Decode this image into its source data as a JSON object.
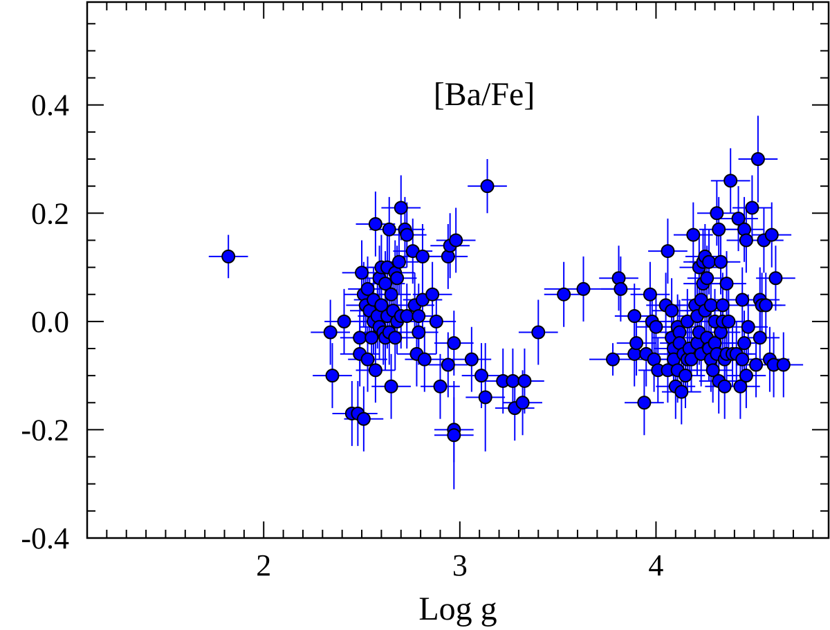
{
  "chart_data": {
    "type": "scatter",
    "title": "[Ba/Fe]",
    "xlabel": "Log g",
    "ylabel": "",
    "xlim": [
      1.1,
      4.88
    ],
    "ylim": [
      -0.4,
      0.59
    ],
    "x_ticks": [
      2,
      3,
      4
    ],
    "x_tick_labels": [
      "2",
      "3",
      "4"
    ],
    "y_ticks": [
      -0.4,
      -0.2,
      0.0,
      0.2,
      0.4
    ],
    "y_tick_labels": [
      "-0.4",
      "-0.2",
      "0.0",
      "0.2",
      "0.4"
    ],
    "grid": false,
    "legend": "none",
    "marker_color": "#0000ff",
    "errorbar_color": "#0000ff",
    "points": [
      {
        "x": 1.82,
        "y": 0.12,
        "xerr": 0.1,
        "yerr": 0.04
      },
      {
        "x": 2.34,
        "y": -0.02,
        "xerr": 0.1,
        "yerr": 0.06
      },
      {
        "x": 2.35,
        "y": -0.1,
        "xerr": 0.1,
        "yerr": 0.06
      },
      {
        "x": 2.41,
        "y": 0.0,
        "xerr": 0.1,
        "yerr": 0.06
      },
      {
        "x": 2.45,
        "y": -0.17,
        "xerr": 0.1,
        "yerr": 0.06
      },
      {
        "x": 2.48,
        "y": -0.17,
        "xerr": 0.1,
        "yerr": 0.06
      },
      {
        "x": 2.49,
        "y": -0.03,
        "xerr": 0.1,
        "yerr": 0.06
      },
      {
        "x": 2.49,
        "y": -0.06,
        "xerr": 0.1,
        "yerr": 0.06
      },
      {
        "x": 2.5,
        "y": 0.09,
        "xerr": 0.1,
        "yerr": 0.06
      },
      {
        "x": 2.51,
        "y": 0.05,
        "xerr": 0.1,
        "yerr": 0.06
      },
      {
        "x": 2.51,
        "y": -0.18,
        "xerr": 0.1,
        "yerr": 0.06
      },
      {
        "x": 2.52,
        "y": 0.03,
        "xerr": 0.1,
        "yerr": 0.06
      },
      {
        "x": 2.53,
        "y": 0.06,
        "xerr": 0.1,
        "yerr": 0.06
      },
      {
        "x": 2.53,
        "y": -0.07,
        "xerr": 0.1,
        "yerr": 0.06
      },
      {
        "x": 2.54,
        "y": 0.02,
        "xerr": 0.1,
        "yerr": 0.06
      },
      {
        "x": 2.55,
        "y": -0.03,
        "xerr": 0.1,
        "yerr": 0.06
      },
      {
        "x": 2.56,
        "y": 0.0,
        "xerr": 0.1,
        "yerr": 0.06
      },
      {
        "x": 2.56,
        "y": 0.04,
        "xerr": 0.1,
        "yerr": 0.06
      },
      {
        "x": 2.57,
        "y": 0.18,
        "xerr": 0.1,
        "yerr": 0.06
      },
      {
        "x": 2.57,
        "y": -0.09,
        "xerr": 0.1,
        "yerr": 0.06
      },
      {
        "x": 2.58,
        "y": 0.01,
        "xerr": 0.1,
        "yerr": 0.06
      },
      {
        "x": 2.59,
        "y": 0.08,
        "xerr": 0.1,
        "yerr": 0.06
      },
      {
        "x": 2.59,
        "y": -0.01,
        "xerr": 0.1,
        "yerr": 0.06
      },
      {
        "x": 2.6,
        "y": 0.1,
        "xerr": 0.1,
        "yerr": 0.06
      },
      {
        "x": 2.6,
        "y": 0.03,
        "xerr": 0.1,
        "yerr": 0.06
      },
      {
        "x": 2.61,
        "y": -0.02,
        "xerr": 0.1,
        "yerr": 0.06
      },
      {
        "x": 2.62,
        "y": 0.07,
        "xerr": 0.1,
        "yerr": 0.06
      },
      {
        "x": 2.62,
        "y": -0.03,
        "xerr": 0.1,
        "yerr": 0.06
      },
      {
        "x": 2.63,
        "y": 0.1,
        "xerr": 0.1,
        "yerr": 0.06
      },
      {
        "x": 2.63,
        "y": 0.01,
        "xerr": 0.1,
        "yerr": 0.06
      },
      {
        "x": 2.64,
        "y": 0.17,
        "xerr": 0.1,
        "yerr": 0.06
      },
      {
        "x": 2.64,
        "y": -0.02,
        "xerr": 0.1,
        "yerr": 0.06
      },
      {
        "x": 2.65,
        "y": 0.05,
        "xerr": 0.1,
        "yerr": 0.06
      },
      {
        "x": 2.65,
        "y": -0.12,
        "xerr": 0.1,
        "yerr": 0.06
      },
      {
        "x": 2.66,
        "y": 0.02,
        "xerr": 0.1,
        "yerr": 0.06
      },
      {
        "x": 2.67,
        "y": 0.09,
        "xerr": 0.1,
        "yerr": 0.06
      },
      {
        "x": 2.67,
        "y": -0.03,
        "xerr": 0.1,
        "yerr": 0.06
      },
      {
        "x": 2.68,
        "y": 0.0,
        "xerr": 0.1,
        "yerr": 0.06
      },
      {
        "x": 2.68,
        "y": 0.08,
        "xerr": 0.1,
        "yerr": 0.06
      },
      {
        "x": 2.69,
        "y": 0.11,
        "xerr": 0.1,
        "yerr": 0.06
      },
      {
        "x": 2.7,
        "y": 0.21,
        "xerr": 0.1,
        "yerr": 0.06
      },
      {
        "x": 2.7,
        "y": 0.01,
        "xerr": 0.1,
        "yerr": 0.06
      },
      {
        "x": 2.72,
        "y": 0.17,
        "xerr": 0.1,
        "yerr": 0.06
      },
      {
        "x": 2.73,
        "y": 0.16,
        "xerr": 0.1,
        "yerr": 0.06
      },
      {
        "x": 2.73,
        "y": 0.01,
        "xerr": 0.1,
        "yerr": 0.06
      },
      {
        "x": 2.76,
        "y": 0.13,
        "xerr": 0.1,
        "yerr": 0.06
      },
      {
        "x": 2.77,
        "y": 0.03,
        "xerr": 0.1,
        "yerr": 0.06
      },
      {
        "x": 2.78,
        "y": -0.06,
        "xerr": 0.1,
        "yerr": 0.06
      },
      {
        "x": 2.79,
        "y": 0.01,
        "xerr": 0.1,
        "yerr": 0.06
      },
      {
        "x": 2.79,
        "y": -0.02,
        "xerr": 0.1,
        "yerr": 0.06
      },
      {
        "x": 2.81,
        "y": 0.12,
        "xerr": 0.1,
        "yerr": 0.06
      },
      {
        "x": 2.81,
        "y": 0.04,
        "xerr": 0.1,
        "yerr": 0.06
      },
      {
        "x": 2.82,
        "y": -0.07,
        "xerr": 0.1,
        "yerr": 0.06
      },
      {
        "x": 2.86,
        "y": 0.05,
        "xerr": 0.1,
        "yerr": 0.06
      },
      {
        "x": 2.88,
        "y": 0.0,
        "xerr": 0.1,
        "yerr": 0.06
      },
      {
        "x": 2.9,
        "y": -0.12,
        "xerr": 0.1,
        "yerr": 0.06
      },
      {
        "x": 2.94,
        "y": 0.12,
        "xerr": 0.1,
        "yerr": 0.06
      },
      {
        "x": 2.94,
        "y": -0.08,
        "xerr": 0.1,
        "yerr": 0.06
      },
      {
        "x": 2.95,
        "y": 0.14,
        "xerr": 0.1,
        "yerr": 0.06
      },
      {
        "x": 2.97,
        "y": -0.04,
        "xerr": 0.1,
        "yerr": 0.06
      },
      {
        "x": 2.97,
        "y": -0.2,
        "xerr": 0.1,
        "yerr": 0.06
      },
      {
        "x": 2.97,
        "y": -0.21,
        "xerr": 0.1,
        "yerr": 0.1
      },
      {
        "x": 2.98,
        "y": 0.15,
        "xerr": 0.1,
        "yerr": 0.06
      },
      {
        "x": 3.06,
        "y": -0.07,
        "xerr": 0.1,
        "yerr": 0.06
      },
      {
        "x": 3.11,
        "y": -0.1,
        "xerr": 0.1,
        "yerr": 0.06
      },
      {
        "x": 3.13,
        "y": -0.14,
        "xerr": 0.1,
        "yerr": 0.1
      },
      {
        "x": 3.14,
        "y": 0.25,
        "xerr": 0.1,
        "yerr": 0.05
      },
      {
        "x": 3.22,
        "y": -0.11,
        "xerr": 0.1,
        "yerr": 0.06
      },
      {
        "x": 3.27,
        "y": -0.11,
        "xerr": 0.1,
        "yerr": 0.06
      },
      {
        "x": 3.28,
        "y": -0.16,
        "xerr": 0.1,
        "yerr": 0.06
      },
      {
        "x": 3.32,
        "y": -0.15,
        "xerr": 0.1,
        "yerr": 0.06
      },
      {
        "x": 3.33,
        "y": -0.11,
        "xerr": 0.1,
        "yerr": 0.06
      },
      {
        "x": 3.4,
        "y": -0.02,
        "xerr": 0.1,
        "yerr": 0.06
      },
      {
        "x": 3.53,
        "y": 0.05,
        "xerr": 0.1,
        "yerr": 0.06
      },
      {
        "x": 3.63,
        "y": 0.06,
        "xerr": 0.2,
        "yerr": 0.06
      },
      {
        "x": 3.78,
        "y": -0.07,
        "xerr": 0.12,
        "yerr": 0.03
      },
      {
        "x": 3.81,
        "y": 0.08,
        "xerr": 0.1,
        "yerr": 0.06
      },
      {
        "x": 3.82,
        "y": 0.06,
        "xerr": 0.1,
        "yerr": 0.06
      },
      {
        "x": 3.89,
        "y": 0.01,
        "xerr": 0.1,
        "yerr": 0.06
      },
      {
        "x": 3.89,
        "y": -0.06,
        "xerr": 0.1,
        "yerr": 0.06
      },
      {
        "x": 3.9,
        "y": -0.04,
        "xerr": 0.1,
        "yerr": 0.06
      },
      {
        "x": 3.94,
        "y": -0.15,
        "xerr": 0.1,
        "yerr": 0.06
      },
      {
        "x": 3.95,
        "y": -0.06,
        "xerr": 0.1,
        "yerr": 0.06
      },
      {
        "x": 3.97,
        "y": 0.05,
        "xerr": 0.1,
        "yerr": 0.06
      },
      {
        "x": 3.98,
        "y": 0.0,
        "xerr": 0.1,
        "yerr": 0.06
      },
      {
        "x": 3.99,
        "y": -0.07,
        "xerr": 0.1,
        "yerr": 0.06
      },
      {
        "x": 4.0,
        "y": -0.01,
        "xerr": 0.1,
        "yerr": 0.06
      },
      {
        "x": 4.01,
        "y": -0.09,
        "xerr": 0.1,
        "yerr": 0.06
      },
      {
        "x": 4.05,
        "y": 0.03,
        "xerr": 0.1,
        "yerr": 0.06
      },
      {
        "x": 4.06,
        "y": 0.13,
        "xerr": 0.1,
        "yerr": 0.06
      },
      {
        "x": 4.06,
        "y": -0.09,
        "xerr": 0.1,
        "yerr": 0.06
      },
      {
        "x": 4.08,
        "y": 0.02,
        "xerr": 0.1,
        "yerr": 0.06
      },
      {
        "x": 4.08,
        "y": -0.03,
        "xerr": 0.1,
        "yerr": 0.06
      },
      {
        "x": 4.09,
        "y": -0.05,
        "xerr": 0.1,
        "yerr": 0.06
      },
      {
        "x": 4.09,
        "y": -0.07,
        "xerr": 0.1,
        "yerr": 0.06
      },
      {
        "x": 4.1,
        "y": -0.12,
        "xerr": 0.1,
        "yerr": 0.06
      },
      {
        "x": 4.11,
        "y": -0.01,
        "xerr": 0.1,
        "yerr": 0.06
      },
      {
        "x": 4.11,
        "y": -0.09,
        "xerr": 0.1,
        "yerr": 0.06
      },
      {
        "x": 4.12,
        "y": -0.02,
        "xerr": 0.1,
        "yerr": 0.06
      },
      {
        "x": 4.12,
        "y": -0.04,
        "xerr": 0.1,
        "yerr": 0.06
      },
      {
        "x": 4.13,
        "y": -0.13,
        "xerr": 0.1,
        "yerr": 0.06
      },
      {
        "x": 4.14,
        "y": -0.06,
        "xerr": 0.1,
        "yerr": 0.06
      },
      {
        "x": 4.15,
        "y": -0.1,
        "xerr": 0.1,
        "yerr": 0.06
      },
      {
        "x": 4.16,
        "y": -0.07,
        "xerr": 0.1,
        "yerr": 0.06
      },
      {
        "x": 4.16,
        "y": 0.0,
        "xerr": 0.1,
        "yerr": 0.06
      },
      {
        "x": 4.17,
        "y": -0.05,
        "xerr": 0.1,
        "yerr": 0.06
      },
      {
        "x": 4.18,
        "y": -0.07,
        "xerr": 0.1,
        "yerr": 0.06
      },
      {
        "x": 4.19,
        "y": 0.16,
        "xerr": 0.1,
        "yerr": 0.06
      },
      {
        "x": 4.2,
        "y": 0.03,
        "xerr": 0.1,
        "yerr": 0.06
      },
      {
        "x": 4.21,
        "y": 0.01,
        "xerr": 0.1,
        "yerr": 0.06
      },
      {
        "x": 4.21,
        "y": -0.04,
        "xerr": 0.1,
        "yerr": 0.06
      },
      {
        "x": 4.22,
        "y": 0.1,
        "xerr": 0.1,
        "yerr": 0.06
      },
      {
        "x": 4.22,
        "y": -0.02,
        "xerr": 0.1,
        "yerr": 0.06
      },
      {
        "x": 4.23,
        "y": 0.04,
        "xerr": 0.1,
        "yerr": 0.06
      },
      {
        "x": 4.23,
        "y": -0.06,
        "xerr": 0.1,
        "yerr": 0.06
      },
      {
        "x": 4.24,
        "y": 0.11,
        "xerr": 0.1,
        "yerr": 0.06
      },
      {
        "x": 4.24,
        "y": 0.07,
        "xerr": 0.1,
        "yerr": 0.06
      },
      {
        "x": 4.25,
        "y": 0.12,
        "xerr": 0.1,
        "yerr": 0.06
      },
      {
        "x": 4.25,
        "y": 0.02,
        "xerr": 0.1,
        "yerr": 0.06
      },
      {
        "x": 4.26,
        "y": 0.08,
        "xerr": 0.1,
        "yerr": 0.06
      },
      {
        "x": 4.26,
        "y": -0.03,
        "xerr": 0.1,
        "yerr": 0.06
      },
      {
        "x": 4.27,
        "y": 0.11,
        "xerr": 0.1,
        "yerr": 0.06
      },
      {
        "x": 4.27,
        "y": -0.05,
        "xerr": 0.1,
        "yerr": 0.06
      },
      {
        "x": 4.28,
        "y": 0.03,
        "xerr": 0.1,
        "yerr": 0.06
      },
      {
        "x": 4.28,
        "y": -0.07,
        "xerr": 0.1,
        "yerr": 0.06
      },
      {
        "x": 4.29,
        "y": -0.09,
        "xerr": 0.1,
        "yerr": 0.06
      },
      {
        "x": 4.3,
        "y": 0.0,
        "xerr": 0.1,
        "yerr": 0.06
      },
      {
        "x": 4.3,
        "y": -0.04,
        "xerr": 0.1,
        "yerr": 0.06
      },
      {
        "x": 4.31,
        "y": 0.2,
        "xerr": 0.1,
        "yerr": 0.06
      },
      {
        "x": 4.31,
        "y": -0.06,
        "xerr": 0.1,
        "yerr": 0.06
      },
      {
        "x": 4.32,
        "y": 0.17,
        "xerr": 0.1,
        "yerr": 0.06
      },
      {
        "x": 4.32,
        "y": -0.11,
        "xerr": 0.1,
        "yerr": 0.06
      },
      {
        "x": 4.33,
        "y": 0.11,
        "xerr": 0.1,
        "yerr": 0.06
      },
      {
        "x": 4.33,
        "y": -0.02,
        "xerr": 0.1,
        "yerr": 0.06
      },
      {
        "x": 4.34,
        "y": 0.03,
        "xerr": 0.1,
        "yerr": 0.06
      },
      {
        "x": 4.34,
        "y": 0.0,
        "xerr": 0.1,
        "yerr": 0.06
      },
      {
        "x": 4.35,
        "y": -0.07,
        "xerr": 0.1,
        "yerr": 0.06
      },
      {
        "x": 4.35,
        "y": -0.12,
        "xerr": 0.1,
        "yerr": 0.06
      },
      {
        "x": 4.36,
        "y": 0.07,
        "xerr": 0.1,
        "yerr": 0.06
      },
      {
        "x": 4.36,
        "y": -0.06,
        "xerr": 0.1,
        "yerr": 0.06
      },
      {
        "x": 4.37,
        "y": 0.0,
        "xerr": 0.1,
        "yerr": 0.06
      },
      {
        "x": 4.38,
        "y": 0.26,
        "xerr": 0.1,
        "yerr": 0.06
      },
      {
        "x": 4.39,
        "y": -0.06,
        "xerr": 0.1,
        "yerr": 0.06
      },
      {
        "x": 4.41,
        "y": -0.06,
        "xerr": 0.1,
        "yerr": 0.06
      },
      {
        "x": 4.42,
        "y": 0.19,
        "xerr": 0.1,
        "yerr": 0.06
      },
      {
        "x": 4.43,
        "y": -0.12,
        "xerr": 0.1,
        "yerr": 0.06
      },
      {
        "x": 4.44,
        "y": 0.04,
        "xerr": 0.1,
        "yerr": 0.06
      },
      {
        "x": 4.44,
        "y": -0.07,
        "xerr": 0.1,
        "yerr": 0.06
      },
      {
        "x": 4.45,
        "y": 0.17,
        "xerr": 0.1,
        "yerr": 0.06
      },
      {
        "x": 4.45,
        "y": -0.04,
        "xerr": 0.1,
        "yerr": 0.06
      },
      {
        "x": 4.46,
        "y": 0.15,
        "xerr": 0.1,
        "yerr": 0.06
      },
      {
        "x": 4.46,
        "y": -0.1,
        "xerr": 0.1,
        "yerr": 0.06
      },
      {
        "x": 4.47,
        "y": -0.01,
        "xerr": 0.1,
        "yerr": 0.06
      },
      {
        "x": 4.49,
        "y": 0.21,
        "xerr": 0.1,
        "yerr": 0.06
      },
      {
        "x": 4.51,
        "y": -0.08,
        "xerr": 0.1,
        "yerr": 0.06
      },
      {
        "x": 4.52,
        "y": 0.3,
        "xerr": 0.1,
        "yerr": 0.08
      },
      {
        "x": 4.53,
        "y": 0.04,
        "xerr": 0.1,
        "yerr": 0.06
      },
      {
        "x": 4.53,
        "y": -0.03,
        "xerr": 0.1,
        "yerr": 0.06
      },
      {
        "x": 4.54,
        "y": 0.03,
        "xerr": 0.1,
        "yerr": 0.06
      },
      {
        "x": 4.55,
        "y": 0.15,
        "xerr": 0.1,
        "yerr": 0.06
      },
      {
        "x": 4.56,
        "y": 0.03,
        "xerr": 0.1,
        "yerr": 0.06
      },
      {
        "x": 4.58,
        "y": -0.07,
        "xerr": 0.1,
        "yerr": 0.06
      },
      {
        "x": 4.59,
        "y": 0.16,
        "xerr": 0.1,
        "yerr": 0.06
      },
      {
        "x": 4.6,
        "y": -0.08,
        "xerr": 0.1,
        "yerr": 0.06
      },
      {
        "x": 4.61,
        "y": 0.08,
        "xerr": 0.1,
        "yerr": 0.06
      },
      {
        "x": 4.65,
        "y": -0.08,
        "xerr": 0.1,
        "yerr": 0.06
      }
    ]
  }
}
